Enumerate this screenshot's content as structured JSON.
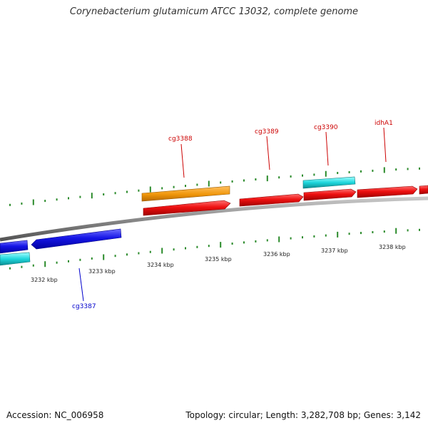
{
  "title": "Corynebacterium glutamicum ATCC 13032, complete genome",
  "accession_text": "Accession: NC_006958",
  "summary_text": "Topology: circular; Length: 3,282,708 bp; Genes: 3,142",
  "colors": {
    "backbone": "#8a8a8a",
    "tick": "#2a8a2a",
    "orange": "#f0960a",
    "red": "#ee1111",
    "cyan": "#1ed6dc",
    "blue": "#1515e6",
    "label_red": "#cc0000",
    "label_blue": "#0000cc"
  },
  "kbp_labels": [
    "3232 kbp",
    "3233 kbp",
    "3234 kbp",
    "3235 kbp",
    "3236 kbp",
    "3237 kbp",
    "3238 kbp"
  ],
  "gene_labels": [
    {
      "text": "cg3388",
      "color": "red"
    },
    {
      "text": "cg3389",
      "color": "red"
    },
    {
      "text": "cg3390",
      "color": "red"
    },
    {
      "text": "idhA1",
      "color": "red"
    },
    {
      "text": "cg3387",
      "color": "blue"
    }
  ]
}
